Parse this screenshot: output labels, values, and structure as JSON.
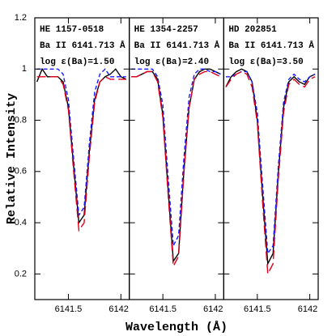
{
  "chart_data": [
    {
      "type": "line",
      "ylabel": "Relative Intensity",
      "annotations": [
        "HE 1157-0518",
        "Ba II 6141.713 Å",
        "log ε(Ba)=1.50"
      ],
      "x": [
        6141.2,
        6141.25,
        6141.3,
        6141.35,
        6141.4,
        6141.45,
        6141.5,
        6141.55,
        6141.6,
        6141.65,
        6141.7,
        6141.75,
        6141.8,
        6141.85,
        6141.9,
        6141.95,
        6142.0,
        6142.05
      ],
      "series": [
        {
          "color": "#000000",
          "style": "solid",
          "values": [
            0.95,
            1.0,
            0.97,
            0.97,
            0.97,
            0.95,
            0.85,
            0.62,
            0.4,
            0.43,
            0.68,
            0.88,
            0.95,
            0.97,
            0.98,
            1.0,
            0.97,
            0.96
          ]
        },
        {
          "color": "#1a1aff",
          "style": "dashed",
          "values": [
            1.0,
            1.0,
            1.0,
            1.0,
            1.0,
            0.98,
            0.88,
            0.65,
            0.43,
            0.46,
            0.71,
            0.91,
            0.98,
            1.0,
            0.97,
            0.97,
            0.97,
            0.97
          ]
        },
        {
          "color": "#e0001a",
          "style": "longdash",
          "values": [
            0.97,
            0.97,
            0.97,
            0.97,
            0.97,
            0.94,
            0.84,
            0.6,
            0.37,
            0.4,
            0.66,
            0.87,
            0.95,
            0.97,
            0.96,
            0.96,
            0.96,
            0.96
          ]
        }
      ],
      "xlim": [
        6141.18,
        6142.08
      ],
      "xticks": [
        6141.5,
        6142
      ],
      "ylim": [
        0.1,
        1.2
      ],
      "yticks": [
        0.2,
        0.4,
        0.6,
        0.8,
        1,
        1.2
      ],
      "ytick_labels": true
    },
    {
      "type": "line",
      "xlabel": "Wavelength (Å)",
      "annotations": [
        "HE 1354-2257",
        "Ba II 6141.713 Å",
        "log ε(Ba)=2.40"
      ],
      "x": [
        6141.2,
        6141.25,
        6141.3,
        6141.35,
        6141.4,
        6141.45,
        6141.5,
        6141.55,
        6141.6,
        6141.65,
        6141.7,
        6141.75,
        6141.8,
        6141.85,
        6141.9,
        6141.95,
        6142.0,
        6142.05
      ],
      "series": [
        {
          "color": "#000000",
          "style": "solid",
          "values": [
            0.97,
            0.97,
            0.98,
            0.99,
            0.99,
            0.96,
            0.82,
            0.53,
            0.25,
            0.28,
            0.6,
            0.85,
            0.96,
            0.99,
            1.0,
            1.0,
            0.99,
            0.98
          ]
        },
        {
          "color": "#1a1aff",
          "style": "dashed",
          "values": [
            1.0,
            1.0,
            1.0,
            1.0,
            1.0,
            0.97,
            0.86,
            0.58,
            0.31,
            0.35,
            0.65,
            0.89,
            0.98,
            1.0,
            1.0,
            0.99,
            0.99,
            0.98
          ]
        },
        {
          "color": "#e0001a",
          "style": "longdash",
          "values": [
            0.97,
            0.97,
            0.98,
            0.99,
            0.99,
            0.95,
            0.81,
            0.51,
            0.23,
            0.27,
            0.59,
            0.85,
            0.96,
            0.98,
            0.99,
            0.99,
            0.98,
            0.97
          ]
        }
      ],
      "xlim": [
        6141.18,
        6142.08
      ],
      "xticks": [
        6141.5,
        6142
      ],
      "ylim": [
        0.1,
        1.2
      ],
      "yticks": [
        0.2,
        0.4,
        0.6,
        0.8,
        1,
        1.2
      ],
      "ytick_labels": false
    },
    {
      "type": "line",
      "annotations": [
        "HD 202851",
        "Ba II 6141.713 Å",
        "log ε(Ba)=3.50"
      ],
      "x": [
        6141.2,
        6141.25,
        6141.3,
        6141.35,
        6141.4,
        6141.45,
        6141.5,
        6141.55,
        6141.6,
        6141.65,
        6141.7,
        6141.75,
        6141.8,
        6141.85,
        6141.9,
        6141.95,
        6142.0,
        6142.05
      ],
      "series": [
        {
          "color": "#000000",
          "style": "solid",
          "values": [
            0.93,
            0.97,
            0.99,
            1.0,
            0.99,
            0.95,
            0.8,
            0.51,
            0.24,
            0.28,
            0.59,
            0.85,
            0.95,
            0.97,
            0.95,
            0.94,
            0.97,
            0.98
          ]
        },
        {
          "color": "#1a1aff",
          "style": "dashed",
          "values": [
            0.97,
            0.97,
            0.98,
            0.99,
            0.99,
            0.95,
            0.83,
            0.55,
            0.28,
            0.31,
            0.62,
            0.87,
            0.96,
            0.98,
            0.96,
            0.95,
            0.97,
            0.98
          ]
        },
        {
          "color": "#e0001a",
          "style": "longdash",
          "values": [
            0.93,
            0.96,
            0.98,
            0.99,
            0.98,
            0.93,
            0.79,
            0.48,
            0.2,
            0.24,
            0.57,
            0.83,
            0.94,
            0.96,
            0.94,
            0.93,
            0.96,
            0.97
          ]
        }
      ],
      "xlim": [
        6141.18,
        6142.08
      ],
      "xticks": [
        6141.5,
        6142
      ],
      "ylim": [
        0.1,
        1.2
      ],
      "yticks": [
        0.2,
        0.4,
        0.6,
        0.8,
        1,
        1.2
      ],
      "ytick_labels": false
    }
  ]
}
